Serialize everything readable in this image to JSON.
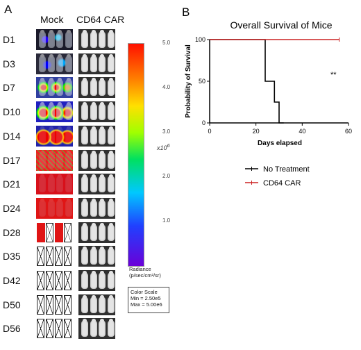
{
  "panel_a": {
    "letter": "A",
    "col_mock": "Mock",
    "col_car": "CD64 CAR",
    "days": [
      "D1",
      "D3",
      "D7",
      "D10",
      "D14",
      "D17",
      "D21",
      "D24",
      "D28",
      "D35",
      "D42",
      "D50",
      "D56"
    ],
    "colorbar": {
      "ticks": [
        "1.0",
        "2.0",
        "3.0",
        "4.0",
        "5.0"
      ],
      "multiplier": "x10",
      "multiplier_exp": "6",
      "caption_line1": "Radiance",
      "caption_line2": "(p/sec/cm²/sr)",
      "scale_title": "Color Scale",
      "scale_min": "Min = 2.50e5",
      "scale_max": "Max = 5.00e6"
    }
  },
  "chart_data": {
    "type": "line",
    "letter": "B",
    "title": "Overall Survival of Mice",
    "xlabel": "Days elapsed",
    "ylabel": "Probability of Survival",
    "xlim": [
      0,
      60
    ],
    "ylim": [
      0,
      100
    ],
    "xticks": [
      0,
      20,
      40,
      60
    ],
    "yticks": [
      0,
      50,
      100
    ],
    "grid": false,
    "legend_placement": "bottom",
    "annotation": "**",
    "series": [
      {
        "name": "No Treatment",
        "color": "#000000",
        "step": true,
        "x": [
          0,
          24,
          24,
          28,
          28,
          30,
          30,
          32,
          32
        ],
        "y": [
          100,
          100,
          50,
          50,
          25,
          25,
          0,
          0,
          0
        ]
      },
      {
        "name": "CD64 CAR",
        "color": "#cc2222",
        "step": true,
        "x": [
          0,
          56
        ],
        "y": [
          100,
          100
        ]
      }
    ]
  }
}
